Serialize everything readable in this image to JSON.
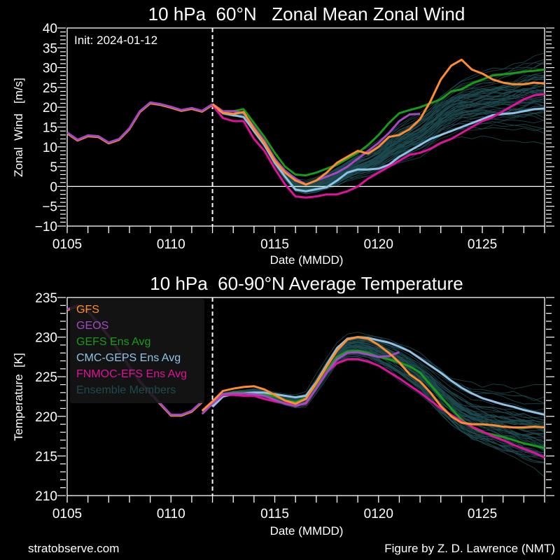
{
  "footer": {
    "left": "stratobserve.com",
    "right": "Figure by Z. D. Lawrence (NMT)"
  },
  "colors": {
    "background": "#000000",
    "axes": "#ffffff",
    "GFS": "#ff8c2e",
    "GEOS": "#a349c2",
    "GEFS": "#1a9a1a",
    "CMC": "#8fc3e6",
    "FNMOC": "#e0119a",
    "members": "#1e4a50"
  },
  "legend": {
    "placement": "upper-left of bottom panel",
    "entries": [
      {
        "key": "GFS",
        "label": "GFS"
      },
      {
        "key": "GEOS",
        "label": "GEOS"
      },
      {
        "key": "GEFS",
        "label": "GEFS Ens Avg"
      },
      {
        "key": "CMC",
        "label": "CMC-GEPS Ens Avg"
      },
      {
        "key": "FNMOC",
        "label": "FNMOC-EFS Ens Avg"
      },
      {
        "key": "members",
        "label": "Ensemble Members"
      }
    ]
  },
  "chart_data": [
    {
      "type": "line",
      "title": "10 hPa  60°N   Zonal Mean Zonal Wind",
      "annotation": "Init: 2024-01-12",
      "xlabel": "Date (MMDD)",
      "ylabel": "Zonal  Wind   [m/s]",
      "x_unit": "days since 0105 (half-day steps)",
      "xlim": [
        0,
        23
      ],
      "ylim": [
        -10,
        40
      ],
      "xticks": [
        {
          "v": 0,
          "label": "0105"
        },
        {
          "v": 5,
          "label": "0110"
        },
        {
          "v": 10,
          "label": "0115"
        },
        {
          "v": 15,
          "label": "0120"
        },
        {
          "v": 20,
          "label": "0125"
        }
      ],
      "yticks": [
        -10,
        -5,
        0,
        5,
        10,
        15,
        20,
        25,
        30,
        35,
        40
      ],
      "init_x": 7,
      "zero_line": 0,
      "analysis": {
        "x_start": 0,
        "step": 0.5,
        "values": [
          13.6,
          11.8,
          12.9,
          12.7,
          11.1,
          12.0,
          14.7,
          19.0,
          21.2,
          20.8,
          20.1,
          19.3,
          19.8,
          19.1,
          20.8
        ]
      },
      "series": [
        {
          "name": "GFS",
          "x_start": 7,
          "step": 0.5,
          "values": [
            20.8,
            18.6,
            18.3,
            18.8,
            14.5,
            11.0,
            6.5,
            3.5,
            1.5,
            0.5,
            1.5,
            3.5,
            6.0,
            7.5,
            9.0,
            8.3,
            10.0,
            12.5,
            13.0,
            14.5,
            17.0,
            21.5,
            27.0,
            30.5,
            32.0,
            29.5,
            28.5,
            27.0,
            26.2,
            25.8,
            25.8,
            26.2,
            26.0
          ]
        },
        {
          "name": "GEOS",
          "x_start": 7,
          "step": 0.5,
          "values": [
            20.8,
            19.0,
            19.0,
            18.5,
            15.0,
            11.5,
            7.0,
            4.0,
            2.0,
            0.5,
            1.5,
            2.5,
            3.5,
            5.0,
            7.0,
            9.0,
            11.0,
            13.5,
            16.5,
            18.2,
            18.3
          ]
        },
        {
          "name": "GEFS",
          "x_start": 7,
          "step": 0.5,
          "values": [
            20.8,
            19.0,
            19.0,
            19.5,
            16.0,
            12.5,
            8.5,
            5.0,
            3.0,
            2.8,
            3.5,
            4.5,
            5.5,
            7.0,
            8.5,
            10.5,
            13.0,
            16.0,
            18.5,
            19.3,
            20.0,
            21.0,
            22.0,
            24.0,
            24.5,
            26.0,
            27.0,
            28.0,
            28.3,
            28.6,
            29.0,
            29.2,
            29.5
          ]
        },
        {
          "name": "CMC",
          "x_start": 7,
          "step": 0.5,
          "values": [
            20.5,
            18.5,
            18.0,
            17.5,
            14.0,
            10.5,
            6.0,
            2.5,
            -0.8,
            -1.2,
            -0.7,
            -0.2,
            1.5,
            3.5,
            4.3,
            4.3,
            4.5,
            5.5,
            7.5,
            9.0,
            10.5,
            12.0,
            13.0,
            14.0,
            15.0,
            16.0,
            17.0,
            18.0,
            18.3,
            18.5,
            19.0,
            19.5,
            19.7
          ]
        },
        {
          "name": "FNMOC",
          "x_start": 7,
          "step": 0.5,
          "values": [
            20.5,
            17.3,
            16.5,
            16.5,
            12.0,
            9.0,
            4.5,
            0.5,
            -2.5,
            -2.8,
            -2.5,
            -2.0,
            -2.0,
            -1.2,
            0.0,
            2.0,
            3.5,
            5.0,
            6.5,
            8.0,
            8.5,
            9.5,
            11.0,
            12.0,
            13.5,
            15.0,
            16.5,
            17.5,
            19.0,
            20.5,
            22.0,
            23.0,
            23.3
          ]
        }
      ],
      "members_spread": {
        "count": 60,
        "range_note": "ensemble members span approx -6 to 40 m/s by 0128"
      }
    },
    {
      "type": "line",
      "title": "10 hPa  60-90°N Average Temperature",
      "xlabel": "Date (MMDD)",
      "ylabel": "Temperature  [K]",
      "x_unit": "days since 0105 (half-day steps)",
      "xlim": [
        0,
        23
      ],
      "ylim": [
        210,
        235
      ],
      "xticks": [
        {
          "v": 0,
          "label": "0105"
        },
        {
          "v": 5,
          "label": "0110"
        },
        {
          "v": 10,
          "label": "0115"
        },
        {
          "v": 15,
          "label": "0120"
        },
        {
          "v": 20,
          "label": "0125"
        }
      ],
      "yticks": [
        210,
        215,
        220,
        225,
        230,
        235
      ],
      "init_x": 7,
      "analysis": {
        "x_start": 0,
        "step": 0.5,
        "values": [
          233.5,
          234.0,
          233.3,
          231.8,
          230.2,
          228.3,
          226.3,
          224.5,
          223.0,
          221.6,
          220.2,
          220.2,
          220.7,
          221.9
        ]
      },
      "series": [
        {
          "name": "GFS",
          "x_start": 6.5,
          "step": 0.5,
          "values": [
            220.7,
            221.9,
            223.2,
            223.5,
            223.7,
            223.8,
            223.4,
            222.7,
            222.0,
            221.6,
            222.2,
            224.2,
            226.3,
            228.3,
            229.7,
            230.0,
            229.8,
            229.0,
            228.0,
            226.8,
            225.3,
            224.4,
            223.0,
            221.3,
            220.0,
            219.2,
            219.0,
            219.0,
            218.9,
            218.7,
            218.6,
            218.6,
            218.7,
            218.6
          ]
        },
        {
          "name": "GEOS",
          "x_start": 6.5,
          "step": 0.5,
          "values": [
            220.3,
            221.6,
            222.8,
            222.9,
            222.9,
            222.8,
            222.6,
            222.1,
            221.6,
            221.3,
            221.7,
            223.5,
            225.5,
            227.2,
            228.0,
            228.1,
            227.8,
            227.5,
            227.6,
            228.1
          ]
        },
        {
          "name": "GEFS",
          "x_start": 7,
          "step": 0.5,
          "values": [
            221.6,
            222.8,
            223.0,
            223.0,
            223.0,
            222.8,
            222.5,
            222.0,
            221.8,
            222.3,
            224.0,
            225.8,
            227.5,
            228.2,
            228.3,
            228.0,
            227.5,
            227.2,
            226.8,
            226.3,
            225.5,
            224.0,
            222.5,
            221.0,
            219.6,
            218.6,
            218.0,
            217.7,
            217.4,
            217.0,
            216.6,
            216.3,
            216.0
          ]
        },
        {
          "name": "CMC",
          "x_start": 7,
          "step": 0.5,
          "values": [
            221.2,
            222.5,
            222.8,
            222.9,
            223.0,
            223.0,
            222.8,
            222.6,
            222.4,
            222.6,
            224.3,
            226.5,
            228.6,
            229.8,
            230.0,
            229.9,
            229.6,
            229.3,
            228.8,
            228.2,
            227.3,
            226.4,
            225.5,
            224.5,
            223.6,
            222.9,
            222.3,
            221.9,
            221.5,
            221.2,
            220.8,
            220.5,
            220.2
          ]
        },
        {
          "name": "FNMOC",
          "x_start": 7,
          "step": 0.5,
          "values": [
            221.6,
            222.7,
            222.7,
            222.6,
            222.6,
            222.2,
            221.9,
            221.7,
            221.4,
            221.6,
            223.5,
            225.6,
            226.7,
            227.2,
            227.2,
            226.9,
            226.4,
            225.6,
            224.8,
            223.9,
            223.0,
            222.0,
            221.0,
            220.2,
            219.4,
            218.7,
            218.1,
            217.5,
            217.0,
            216.4,
            215.9,
            215.4,
            214.8
          ]
        }
      ],
      "members_spread": {
        "count": 60,
        "range_note": "ensemble members span approx 212 to 235 K"
      }
    }
  ]
}
